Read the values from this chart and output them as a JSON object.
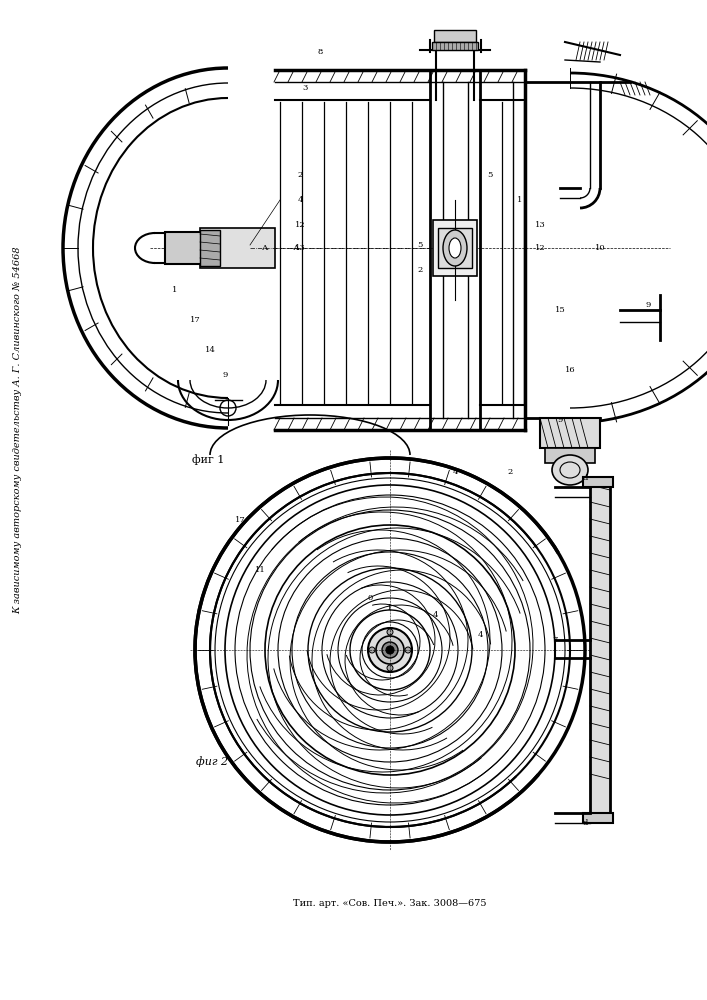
{
  "background_color": "#ffffff",
  "page_width": 7.07,
  "page_height": 10.0,
  "sidebar_text": "К зависимому авторскому свидетельству А. Г. Сливинского № 54668",
  "fig1_label": "фиг 1",
  "fig2_label": "фиг 2",
  "footer_text": "Тип. арт. «Сов. Печ.». Зак. 3008—675",
  "line_color": "#000000",
  "line_width": 0.8
}
